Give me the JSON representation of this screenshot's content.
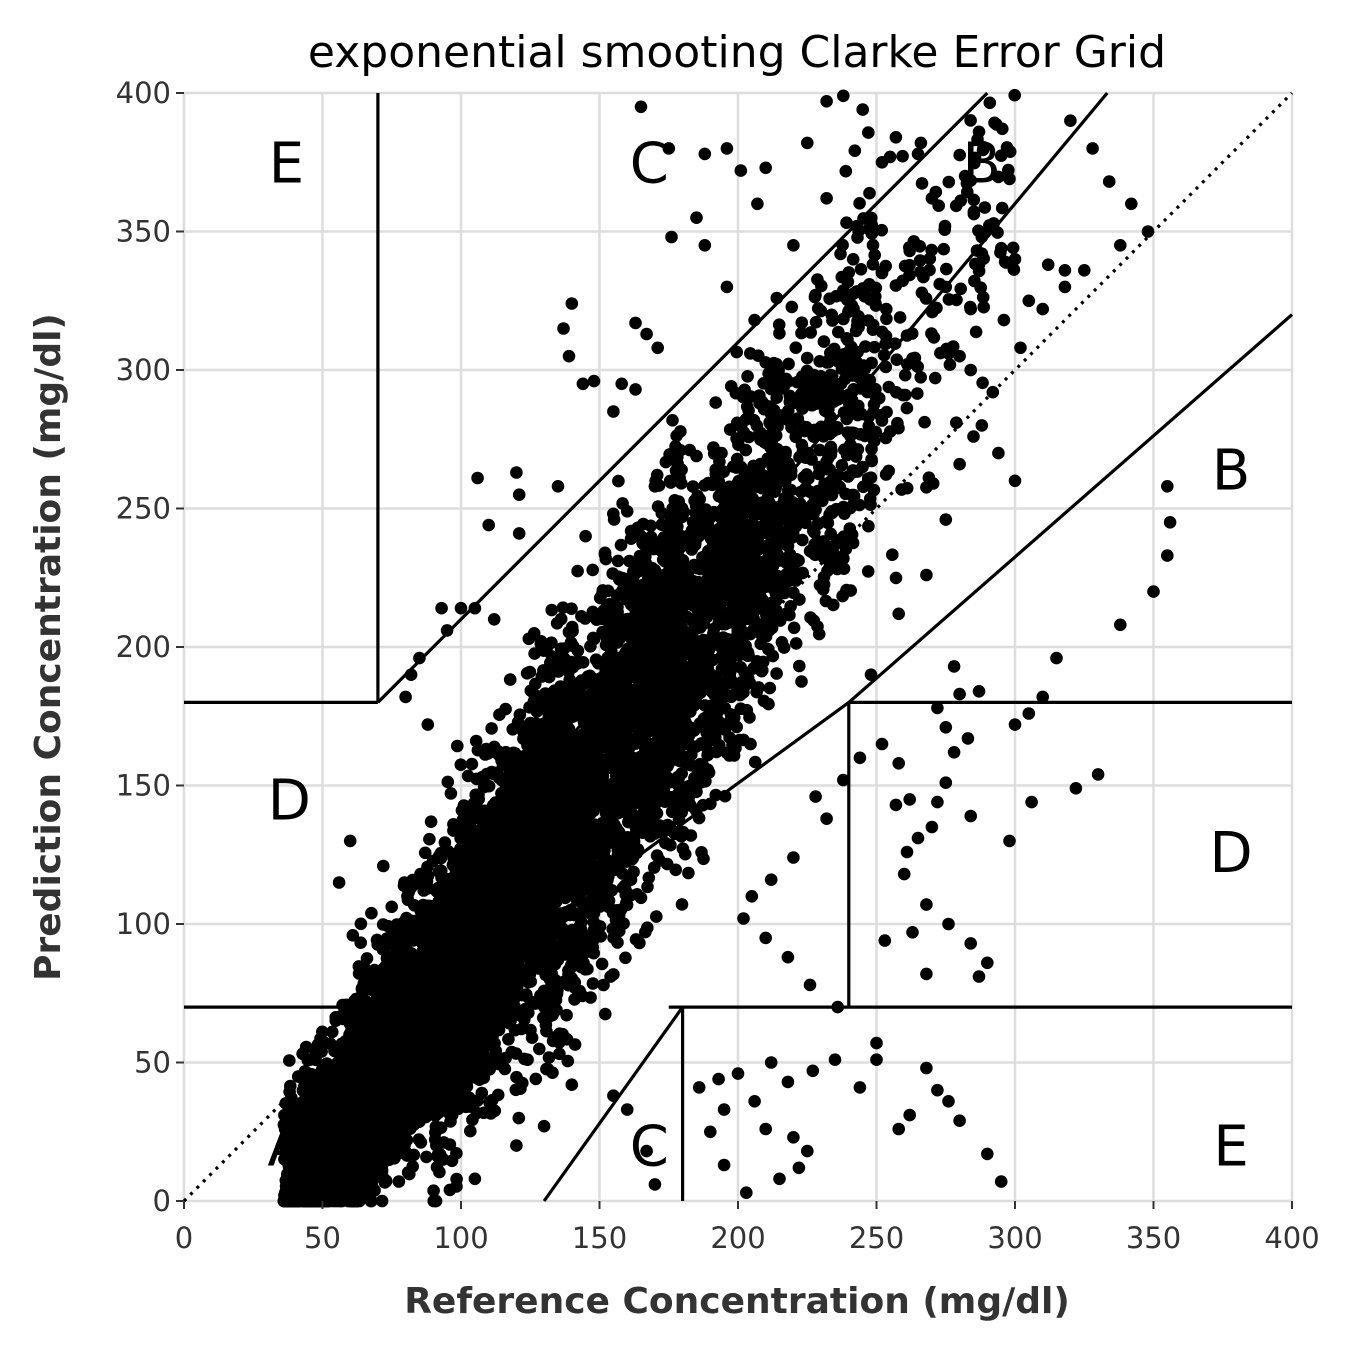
{
  "chart_data": {
    "type": "scatter",
    "title": "exponential smooting Clarke Error Grid",
    "xlabel": "Reference Concentration (mg/dl)",
    "ylabel": "Prediction Concentration (mg/dl)",
    "xlim": [
      0,
      400
    ],
    "ylim": [
      0,
      400
    ],
    "xticks": [
      0,
      50,
      100,
      150,
      200,
      250,
      300,
      350,
      400
    ],
    "yticks": [
      0,
      50,
      100,
      150,
      200,
      250,
      300,
      350,
      400
    ],
    "grid": true,
    "point_color": "#000000",
    "zone_labels": [
      {
        "text": "E",
        "x": 37,
        "y": 375
      },
      {
        "text": "C",
        "x": 168,
        "y": 375
      },
      {
        "text": "B",
        "x": 288,
        "y": 375
      },
      {
        "text": "B",
        "x": 378,
        "y": 264
      },
      {
        "text": "D",
        "x": 38,
        "y": 145
      },
      {
        "text": "D",
        "x": 378,
        "y": 126
      },
      {
        "text": "A",
        "x": 37,
        "y": 20
      },
      {
        "text": "C",
        "x": 168,
        "y": 20
      },
      {
        "text": "E",
        "x": 378,
        "y": 20
      }
    ],
    "zone_lines": [
      [
        [
          0,
          0
        ],
        [
          400,
          400
        ]
      ],
      [
        [
          70,
          400
        ],
        [
          70,
          180
        ]
      ],
      [
        [
          0,
          180
        ],
        [
          70,
          180
        ]
      ],
      [
        [
          70,
          180
        ],
        [
          290,
          400
        ]
      ],
      [
        [
          70,
          84
        ],
        [
          333.3,
          400
        ]
      ],
      [
        [
          0,
          70
        ],
        [
          58.3,
          70
        ]
      ],
      [
        [
          175,
          70
        ],
        [
          400,
          70
        ]
      ],
      [
        [
          130,
          0
        ],
        [
          180,
          70
        ]
      ],
      [
        [
          180,
          70
        ],
        [
          180,
          0
        ]
      ],
      [
        [
          240,
          70
        ],
        [
          240,
          180
        ]
      ],
      [
        [
          240,
          180
        ],
        [
          400,
          180
        ]
      ],
      [
        [
          70,
          56
        ],
        [
          240,
          180
        ]
      ],
      [
        [
          240,
          180
        ],
        [
          400,
          320
        ]
      ]
    ],
    "dense_regions": [
      {
        "x": [
          36,
          120
        ],
        "y": [
          5,
          100
        ],
        "n": 2200
      },
      {
        "x": [
          60,
          140
        ],
        "y": [
          30,
          160
        ],
        "n": 1800
      },
      {
        "x": [
          90,
          180
        ],
        "y": [
          60,
          220
        ],
        "n": 1800
      },
      {
        "x": [
          130,
          215
        ],
        "y": [
          100,
          260
        ],
        "n": 1300
      },
      {
        "x": [
          170,
          250
        ],
        "y": [
          160,
          320
        ],
        "n": 700
      },
      {
        "x": [
          210,
          300
        ],
        "y": [
          220,
          380
        ],
        "n": 300
      }
    ],
    "sparse_points": [
      [
        165,
        395
      ],
      [
        175,
        380
      ],
      [
        188,
        378
      ],
      [
        196,
        380
      ],
      [
        201,
        372
      ],
      [
        210,
        373
      ],
      [
        207,
        360
      ],
      [
        225,
        382
      ],
      [
        232,
        397
      ],
      [
        238,
        399
      ],
      [
        245,
        394
      ],
      [
        252,
        375
      ],
      [
        257,
        384
      ],
      [
        265,
        378
      ],
      [
        270,
        362
      ],
      [
        282,
        370
      ],
      [
        287,
        386
      ],
      [
        298,
        369
      ],
      [
        312,
        401
      ],
      [
        320,
        390
      ],
      [
        328,
        380
      ],
      [
        334,
        368
      ],
      [
        342,
        360
      ],
      [
        348,
        350
      ],
      [
        338,
        345
      ],
      [
        325,
        336
      ],
      [
        318,
        330
      ],
      [
        312,
        338
      ],
      [
        300,
        340
      ],
      [
        288,
        348
      ],
      [
        275,
        330
      ],
      [
        284,
        322
      ],
      [
        296,
        318
      ],
      [
        305,
        325
      ],
      [
        262,
        343
      ],
      [
        252,
        335
      ],
      [
        243,
        352
      ],
      [
        232,
        362
      ],
      [
        220,
        345
      ],
      [
        214,
        326
      ],
      [
        206,
        318
      ],
      [
        196,
        330
      ],
      [
        188,
        345
      ],
      [
        185,
        355
      ],
      [
        176,
        348
      ],
      [
        140,
        324
      ],
      [
        137,
        315
      ],
      [
        139,
        305
      ],
      [
        144,
        295
      ],
      [
        148,
        296
      ],
      [
        155,
        285
      ],
      [
        163,
        317
      ],
      [
        167,
        313
      ],
      [
        171,
        308
      ],
      [
        163,
        293
      ],
      [
        158,
        295
      ],
      [
        106,
        261
      ],
      [
        110,
        244
      ],
      [
        120,
        263
      ],
      [
        121,
        255
      ],
      [
        121,
        241
      ],
      [
        135,
        258
      ],
      [
        145,
        240
      ],
      [
        152,
        234
      ],
      [
        160,
        249
      ],
      [
        165,
        240
      ],
      [
        170,
        258
      ],
      [
        93,
        214
      ],
      [
        95,
        206
      ],
      [
        100,
        214
      ],
      [
        105,
        214
      ],
      [
        112,
        210
      ],
      [
        85,
        196
      ],
      [
        82,
        190
      ],
      [
        80,
        182
      ],
      [
        88,
        172
      ],
      [
        60,
        130
      ],
      [
        56,
        115
      ],
      [
        355,
        258
      ],
      [
        356,
        245
      ],
      [
        355,
        233
      ],
      [
        350,
        220
      ],
      [
        338,
        208
      ],
      [
        315,
        196
      ],
      [
        310,
        182
      ],
      [
        305,
        176
      ],
      [
        300,
        172
      ],
      [
        330,
        154
      ],
      [
        322,
        149
      ],
      [
        306,
        144
      ],
      [
        298,
        130
      ],
      [
        284,
        139
      ],
      [
        278,
        193
      ],
      [
        280,
        183
      ],
      [
        287,
        184
      ],
      [
        272,
        178
      ],
      [
        275,
        171
      ],
      [
        278,
        162
      ],
      [
        283,
        167
      ],
      [
        275,
        151
      ],
      [
        272,
        144
      ],
      [
        270,
        135
      ],
      [
        265,
        131
      ],
      [
        262,
        145
      ],
      [
        258,
        158
      ],
      [
        252,
        165
      ],
      [
        257,
        143
      ],
      [
        261,
        126
      ],
      [
        260,
        118
      ],
      [
        268,
        107
      ],
      [
        276,
        100
      ],
      [
        284,
        93
      ],
      [
        290,
        86
      ],
      [
        287,
        81
      ],
      [
        268,
        82
      ],
      [
        253,
        94
      ],
      [
        263,
        97
      ],
      [
        250,
        57
      ],
      [
        250,
        51
      ],
      [
        244,
        41
      ],
      [
        235,
        51
      ],
      [
        227,
        47
      ],
      [
        218,
        43
      ],
      [
        212,
        50
      ],
      [
        200,
        46
      ],
      [
        193,
        44
      ],
      [
        195,
        33
      ],
      [
        206,
        36
      ],
      [
        220,
        23
      ],
      [
        225,
        18
      ],
      [
        222,
        12
      ],
      [
        215,
        8
      ],
      [
        210,
        26
      ],
      [
        203,
        3
      ],
      [
        195,
        13
      ],
      [
        190,
        25
      ],
      [
        186,
        41
      ],
      [
        170,
        6
      ],
      [
        167,
        18
      ],
      [
        160,
        33
      ],
      [
        155,
        38
      ],
      [
        140,
        42
      ],
      [
        130,
        27
      ],
      [
        120,
        20
      ],
      [
        105,
        8
      ],
      [
        96,
        4
      ],
      [
        268,
        48
      ],
      [
        272,
        40
      ],
      [
        276,
        36
      ],
      [
        280,
        29
      ],
      [
        290,
        17
      ],
      [
        295,
        7
      ],
      [
        258,
        26
      ],
      [
        262,
        31
      ],
      [
        236,
        70
      ],
      [
        226,
        78
      ],
      [
        218,
        88
      ],
      [
        210,
        95
      ],
      [
        202,
        102
      ],
      [
        205,
        110
      ],
      [
        212,
        116
      ],
      [
        220,
        124
      ],
      [
        232,
        138
      ],
      [
        238,
        152
      ],
      [
        244,
        160
      ],
      [
        228,
        146
      ],
      [
        248,
        190
      ],
      [
        258,
        212
      ],
      [
        268,
        226
      ],
      [
        275,
        246
      ],
      [
        280,
        266
      ],
      [
        285,
        276
      ],
      [
        292,
        292
      ],
      [
        302,
        308
      ],
      [
        310,
        322
      ],
      [
        318,
        336
      ],
      [
        300,
        260
      ],
      [
        294,
        270
      ],
      [
        288,
        280
      ],
      [
        284,
        300
      ],
      [
        280,
        305
      ]
    ]
  }
}
